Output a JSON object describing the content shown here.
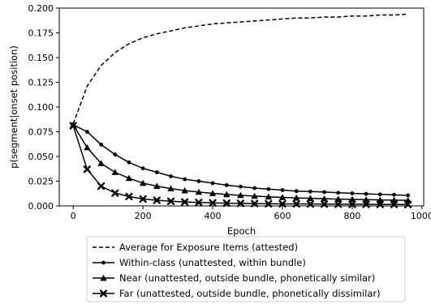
{
  "chart_data": {
    "type": "line",
    "title": "",
    "xlabel": "Epoch",
    "ylabel": "p(segment|onset position)",
    "xlim": [
      -40,
      1005
    ],
    "ylim": [
      0,
      0.2
    ],
    "xticks": [
      0,
      200,
      400,
      600,
      800,
      1000
    ],
    "xtick_labels": [
      "0",
      "200",
      "400",
      "600",
      "800",
      "1000"
    ],
    "yticks": [
      0,
      0.025,
      0.05,
      0.075,
      0.1,
      0.125,
      0.15,
      0.175,
      0.2
    ],
    "ytick_labels": [
      "0.000",
      "0.025",
      "0.050",
      "0.075",
      "0.100",
      "0.125",
      "0.150",
      "0.175",
      "0.200"
    ],
    "grid": false,
    "legend_position": "below",
    "x": [
      0,
      40,
      80,
      120,
      160,
      200,
      240,
      280,
      320,
      360,
      400,
      440,
      480,
      520,
      560,
      600,
      640,
      680,
      720,
      760,
      800,
      840,
      880,
      920,
      960
    ],
    "series": [
      {
        "name": "Average for Exposure Items (attested)",
        "style": "dashed",
        "marker": "none",
        "color": "#000000",
        "values": [
          0.083,
          0.121,
          0.142,
          0.155,
          0.164,
          0.17,
          0.174,
          0.177,
          0.18,
          0.182,
          0.184,
          0.185,
          0.186,
          0.187,
          0.188,
          0.189,
          0.19,
          0.19,
          0.191,
          0.191,
          0.192,
          0.192,
          0.193,
          0.193,
          0.194
        ]
      },
      {
        "name": "Within-class (unattested, within bundle)",
        "style": "solid",
        "marker": "dot",
        "color": "#000000",
        "values": [
          0.082,
          0.075,
          0.062,
          0.052,
          0.044,
          0.038,
          0.034,
          0.03,
          0.027,
          0.025,
          0.023,
          0.021,
          0.0195,
          0.018,
          0.017,
          0.016,
          0.015,
          0.0145,
          0.014,
          0.0133,
          0.0127,
          0.0122,
          0.0117,
          0.0112,
          0.0107
        ]
      },
      {
        "name": "Near (unattested, outside bundle, phonetically similar)",
        "style": "solid",
        "marker": "triangle",
        "color": "#000000",
        "values": [
          0.082,
          0.059,
          0.043,
          0.034,
          0.028,
          0.023,
          0.02,
          0.0175,
          0.0155,
          0.014,
          0.0127,
          0.0116,
          0.0107,
          0.0099,
          0.0092,
          0.0086,
          0.0081,
          0.0077,
          0.0073,
          0.0069,
          0.0066,
          0.0063,
          0.006,
          0.0058,
          0.0056
        ]
      },
      {
        "name": "Far (unattested, outside bundle, phonetically dissimilar)",
        "style": "solid",
        "marker": "x",
        "color": "#000000",
        "values": [
          0.081,
          0.037,
          0.02,
          0.013,
          0.0095,
          0.007,
          0.0057,
          0.0047,
          0.004,
          0.0035,
          0.0031,
          0.0028,
          0.0026,
          0.0024,
          0.0022,
          0.0021,
          0.002,
          0.0019,
          0.0018,
          0.0017,
          0.0016,
          0.0016,
          0.0015,
          0.0015,
          0.0014
        ]
      }
    ]
  }
}
